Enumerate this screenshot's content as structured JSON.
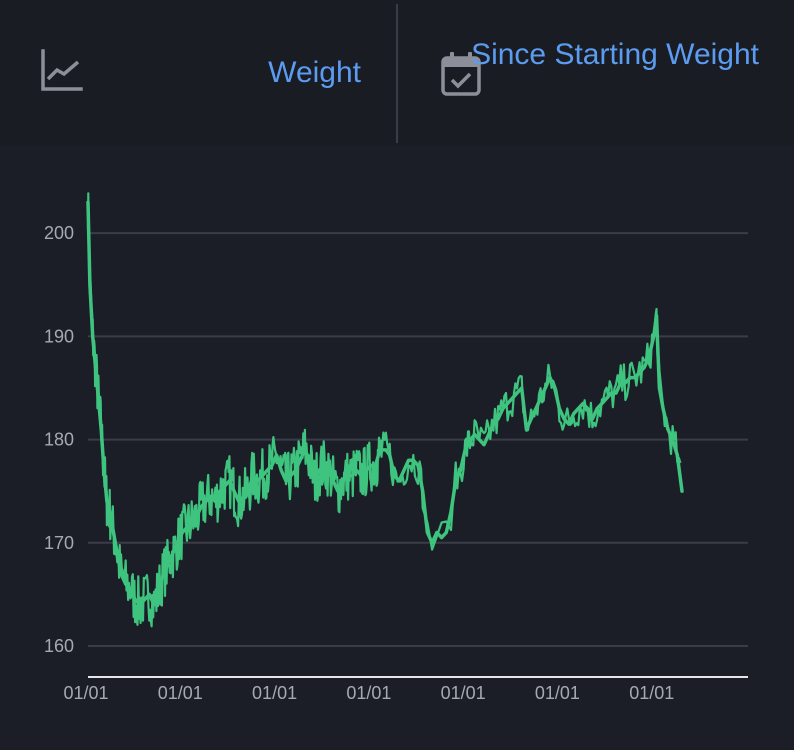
{
  "header": {
    "metric": {
      "icon": "line-chart-icon",
      "label": "Weight"
    },
    "period": {
      "icon": "calendar-check-icon",
      "label": "Since Starting Weight"
    }
  },
  "colors": {
    "background": "#1c1e27",
    "header_background": "#1a1c24",
    "accent": "#5b9cf0",
    "series": "#3ec47e",
    "grid": "#3a3d48",
    "axis_text": "#a7a9b1"
  },
  "chart_data": {
    "type": "line",
    "title": "",
    "xlabel": "",
    "ylabel": "",
    "ylim": [
      157,
      203.5
    ],
    "xlim": [
      0,
      7
    ],
    "yticks": [
      160,
      170,
      180,
      190,
      200
    ],
    "xtick_positions": [
      0,
      1,
      2,
      3,
      4,
      5,
      6
    ],
    "xtick_labels": [
      "01/01",
      "01/01",
      "01/01",
      "01/01",
      "01/01",
      "01/01",
      "01/01"
    ],
    "grid": true,
    "series": [
      {
        "name": "Weight",
        "x": [
          0.0,
          0.02,
          0.05,
          0.08,
          0.11,
          0.14,
          0.17,
          0.2,
          0.23,
          0.27,
          0.31,
          0.35,
          0.4,
          0.45,
          0.5,
          0.55,
          0.6,
          0.65,
          0.7,
          0.75,
          0.8,
          0.85,
          0.9,
          0.95,
          1.0,
          1.05,
          1.1,
          1.15,
          1.2,
          1.25,
          1.3,
          1.35,
          1.4,
          1.45,
          1.5,
          1.55,
          1.6,
          1.65,
          1.7,
          1.75,
          1.8,
          1.85,
          1.9,
          1.95,
          2.0,
          2.05,
          2.1,
          2.15,
          2.2,
          2.25,
          2.3,
          2.35,
          2.4,
          2.45,
          2.5,
          2.55,
          2.6,
          2.65,
          2.7,
          2.75,
          2.8,
          2.85,
          2.9,
          2.95,
          3.0,
          3.05,
          3.08,
          3.12,
          3.16,
          3.2,
          3.25,
          3.3,
          3.35,
          3.4,
          3.45,
          3.5,
          3.55,
          3.6,
          3.65,
          3.7,
          3.75,
          3.8,
          3.85,
          3.9,
          3.95,
          4.0,
          4.03,
          4.06,
          4.1,
          4.15,
          4.2,
          4.25,
          4.3,
          4.35,
          4.4,
          4.45,
          4.5,
          4.55,
          4.6,
          4.65,
          4.7,
          4.75,
          4.8,
          4.85,
          4.9,
          4.95,
          5.0,
          5.05,
          5.1,
          5.15,
          5.2,
          5.25,
          5.3,
          5.35,
          5.4,
          5.45,
          5.5,
          5.55,
          5.6,
          5.65,
          5.7,
          5.75,
          5.8,
          5.85,
          5.9,
          5.95,
          6.0,
          6.03,
          6.06,
          6.1,
          6.15,
          6.2,
          6.25,
          6.3
        ],
        "values": [
          203.0,
          195.0,
          190.0,
          187.0,
          184.0,
          181.0,
          177.0,
          174.0,
          173.0,
          171.0,
          169.0,
          167.0,
          166.0,
          165.5,
          164.5,
          164.0,
          164.5,
          165.0,
          164.0,
          165.5,
          167.0,
          168.0,
          169.0,
          170.0,
          171.0,
          171.5,
          172.0,
          172.5,
          173.5,
          174.0,
          174.5,
          174.0,
          175.0,
          175.5,
          176.0,
          175.0,
          174.0,
          174.5,
          175.0,
          176.5,
          176.0,
          176.5,
          177.0,
          177.5,
          178.5,
          177.0,
          176.0,
          176.5,
          177.0,
          178.0,
          179.0,
          178.0,
          176.0,
          177.0,
          177.5,
          177.0,
          176.0,
          175.0,
          176.0,
          176.5,
          176.5,
          177.0,
          176.5,
          177.0,
          177.5,
          177.5,
          178.5,
          179.0,
          179.0,
          178.5,
          176.5,
          176.0,
          177.0,
          178.0,
          178.0,
          177.5,
          175.0,
          171.0,
          170.0,
          171.0,
          170.5,
          171.0,
          173.0,
          176.0,
          177.0,
          179.0,
          179.5,
          180.0,
          180.5,
          180.0,
          179.5,
          180.5,
          181.5,
          182.0,
          183.0,
          183.5,
          184.0,
          184.5,
          185.0,
          181.0,
          182.0,
          183.0,
          184.0,
          185.0,
          186.0,
          185.0,
          183.0,
          182.0,
          181.5,
          182.5,
          183.0,
          183.5,
          183.0,
          182.0,
          183.0,
          183.5,
          184.0,
          184.5,
          184.5,
          185.5,
          185.5,
          186.0,
          186.0,
          186.5,
          187.0,
          188.0,
          190.0,
          192.0,
          185.0,
          183.0,
          181.0,
          180.0,
          178.5,
          175.0
        ]
      }
    ]
  }
}
